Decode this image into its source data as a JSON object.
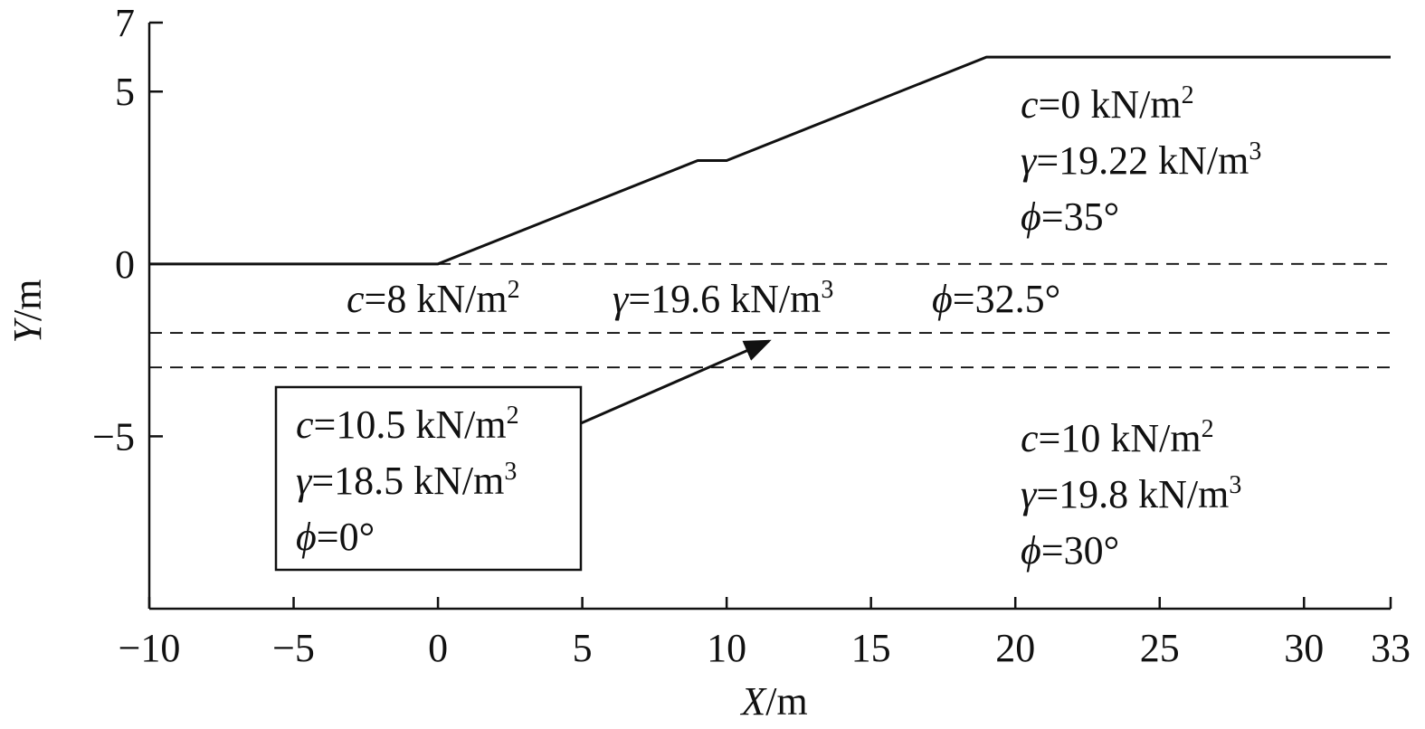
{
  "chart_data": {
    "type": "line",
    "xlabel": {
      "symbol": "X",
      "text": "/m"
    },
    "ylabel": {
      "symbol": "Y",
      "text": "/m"
    },
    "xlim": [
      -10,
      33
    ],
    "ylim": [
      -10,
      7
    ],
    "xticks": [
      {
        "value": -10,
        "label": "−10"
      },
      {
        "value": -5,
        "label": "−5"
      },
      0,
      5,
      10,
      15,
      20,
      25,
      30,
      33
    ],
    "yticks": [
      {
        "value": -5,
        "label": "−5"
      },
      0,
      5,
      7
    ],
    "series": [
      {
        "style": "solid",
        "color": "#111111",
        "x": [
          -10,
          0,
          9,
          10,
          19,
          33
        ],
        "values": [
          0,
          0,
          3,
          3,
          6,
          6
        ]
      },
      {
        "style": "dashed",
        "color": "#111111",
        "x": [
          0,
          33
        ],
        "values": [
          0,
          0
        ]
      },
      {
        "style": "dashed",
        "color": "#111111",
        "x": [
          -10,
          33
        ],
        "values": [
          -2,
          -2
        ]
      },
      {
        "style": "dashed",
        "color": "#111111",
        "x": [
          -10,
          33
        ],
        "values": [
          -3,
          -3
        ]
      }
    ],
    "annotations": [
      {
        "lines": [
          {
            "symbol": "c",
            "text": "=0 kN/m",
            "sup": "2"
          },
          {
            "symbol": "γ",
            "text": "=19.22 kN/m",
            "sup": "3"
          },
          {
            "symbol": "ϕ",
            "text": "=35°"
          }
        ]
      },
      {
        "lines": [
          {
            "symbol": "c",
            "text": "=8 kN/m",
            "sup": "2"
          }
        ]
      },
      {
        "lines": [
          {
            "symbol": "γ",
            "text": "=19.6 kN/m",
            "sup": "3"
          }
        ]
      },
      {
        "lines": [
          {
            "symbol": "ϕ",
            "text": "=32.5°"
          }
        ]
      },
      {
        "lines": [
          {
            "symbol": "c",
            "text": "=10.5 kN/m",
            "sup": "2"
          },
          {
            "symbol": "γ",
            "text": "=18.5 kN/m",
            "sup": "3"
          },
          {
            "symbol": "ϕ",
            "text": "=0°"
          }
        ]
      },
      {
        "lines": [
          {
            "symbol": "c",
            "text": "=10 kN/m",
            "sup": "2"
          },
          {
            "symbol": "γ",
            "text": "=19.8 kN/m",
            "sup": "3"
          },
          {
            "symbol": "ϕ",
            "text": "=30°"
          }
        ]
      }
    ]
  }
}
